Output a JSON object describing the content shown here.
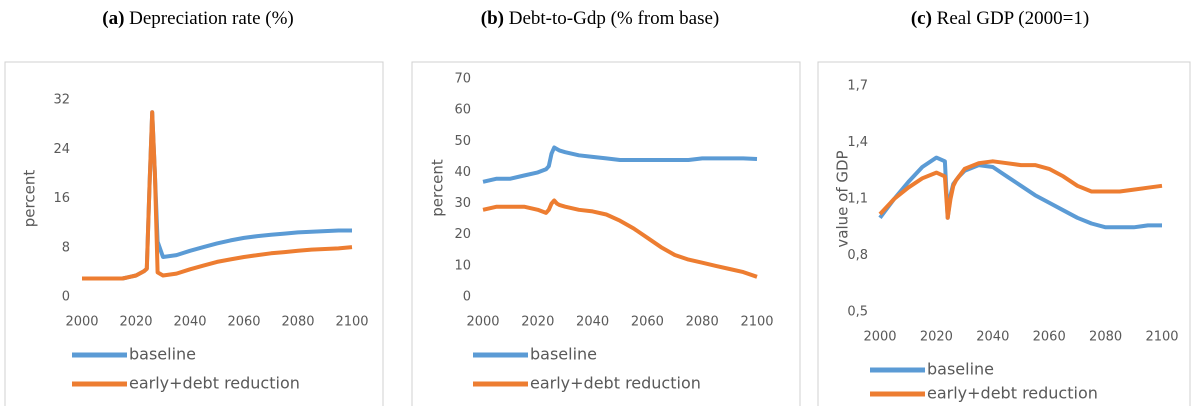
{
  "chart_data": [
    {
      "type": "line",
      "panel": "(a)",
      "title": "Depreciation rate (%)",
      "ylabel": "percent",
      "x": [
        2000,
        2005,
        2010,
        2015,
        2020,
        2023,
        2024,
        2025,
        2026,
        2027,
        2028,
        2030,
        2035,
        2040,
        2045,
        2050,
        2055,
        2060,
        2065,
        2070,
        2075,
        2080,
        2085,
        2090,
        2095,
        2100
      ],
      "xlim": [
        2000,
        2100
      ],
      "xticks": [
        2000,
        2020,
        2040,
        2060,
        2080,
        2100
      ],
      "ylim": [
        0,
        32
      ],
      "yticks": [
        0,
        8,
        16,
        24,
        32
      ],
      "legend": "bottom",
      "series": [
        {
          "name": "baseline",
          "color": "#5b9bd5",
          "values": [
            3,
            3,
            3,
            3,
            3.5,
            4.2,
            4.6,
            18,
            30,
            20,
            9,
            6.5,
            6.8,
            7.5,
            8.1,
            8.7,
            9.2,
            9.6,
            9.9,
            10.1,
            10.3,
            10.5,
            10.6,
            10.7,
            10.8,
            10.8
          ]
        },
        {
          "name": "early+debt reduction",
          "color": "#ed7d31",
          "values": [
            3,
            3,
            3,
            3,
            3.5,
            4.2,
            4.6,
            18,
            30,
            20,
            4,
            3.5,
            3.8,
            4.5,
            5.1,
            5.7,
            6.1,
            6.5,
            6.8,
            7.1,
            7.3,
            7.5,
            7.7,
            7.8,
            7.9,
            8.1
          ]
        }
      ]
    },
    {
      "type": "line",
      "panel": "(b)",
      "title": "Debt-to-Gdp (% from base)",
      "ylabel": "percent",
      "x": [
        2000,
        2005,
        2010,
        2015,
        2020,
        2023,
        2024,
        2025,
        2026,
        2027,
        2028,
        2030,
        2035,
        2040,
        2045,
        2050,
        2055,
        2060,
        2065,
        2070,
        2075,
        2080,
        2085,
        2090,
        2095,
        2100
      ],
      "xlim": [
        2000,
        2100
      ],
      "xticks": [
        2000,
        2020,
        2040,
        2060,
        2080,
        2100
      ],
      "ylim": [
        0,
        70
      ],
      "yticks": [
        0,
        10,
        20,
        30,
        40,
        50,
        60,
        70
      ],
      "legend": "bottom",
      "series": [
        {
          "name": "baseline",
          "color": "#5b9bd5",
          "values": [
            37,
            38,
            38,
            39,
            40,
            41,
            42,
            46,
            48,
            47.5,
            47,
            46.5,
            45.5,
            45,
            44.5,
            44,
            44,
            44,
            44,
            44,
            44,
            44.5,
            44.5,
            44.5,
            44.5,
            44.3
          ]
        },
        {
          "name": "early+debt reduction",
          "color": "#ed7d31",
          "values": [
            28,
            29,
            29,
            29,
            28,
            27,
            28,
            30,
            31,
            30,
            29.5,
            29,
            28,
            27.5,
            26.5,
            24.5,
            22,
            19,
            16,
            13.5,
            12,
            11,
            10,
            9,
            8,
            6.5
          ]
        }
      ]
    },
    {
      "type": "line",
      "panel": "(c)",
      "title": "Real GDP (2000=1)",
      "ylabel": "value of GDP",
      "x": [
        2000,
        2005,
        2010,
        2015,
        2020,
        2023,
        2024,
        2025,
        2026,
        2027,
        2028,
        2030,
        2035,
        2040,
        2045,
        2050,
        2055,
        2060,
        2065,
        2070,
        2075,
        2080,
        2085,
        2090,
        2095,
        2100
      ],
      "xlim": [
        2000,
        2100
      ],
      "xticks": [
        2000,
        2020,
        2040,
        2060,
        2080,
        2100
      ],
      "ylim": [
        0.5,
        1.7
      ],
      "yticks": [
        {
          "value": 0.5,
          "label": "0,5"
        },
        {
          "value": 0.8,
          "label": "0,8"
        },
        {
          "value": 1.1,
          "label": "1,1"
        },
        {
          "value": 1.4,
          "label": "1,4"
        },
        {
          "value": 1.7,
          "label": "1,7"
        }
      ],
      "legend": "bottom",
      "series": [
        {
          "name": "baseline",
          "color": "#5b9bd5",
          "values": [
            1.0,
            1.1,
            1.19,
            1.27,
            1.32,
            1.3,
            1.0,
            1.12,
            1.18,
            1.2,
            1.22,
            1.25,
            1.28,
            1.27,
            1.22,
            1.17,
            1.12,
            1.08,
            1.04,
            1.0,
            0.97,
            0.95,
            0.95,
            0.95,
            0.96,
            0.96
          ]
        },
        {
          "name": "early+debt reduction",
          "color": "#ed7d31",
          "values": [
            1.02,
            1.1,
            1.16,
            1.21,
            1.24,
            1.22,
            1.0,
            1.1,
            1.17,
            1.2,
            1.22,
            1.26,
            1.29,
            1.3,
            1.29,
            1.28,
            1.28,
            1.26,
            1.22,
            1.17,
            1.14,
            1.14,
            1.14,
            1.15,
            1.16,
            1.17
          ]
        }
      ]
    }
  ]
}
